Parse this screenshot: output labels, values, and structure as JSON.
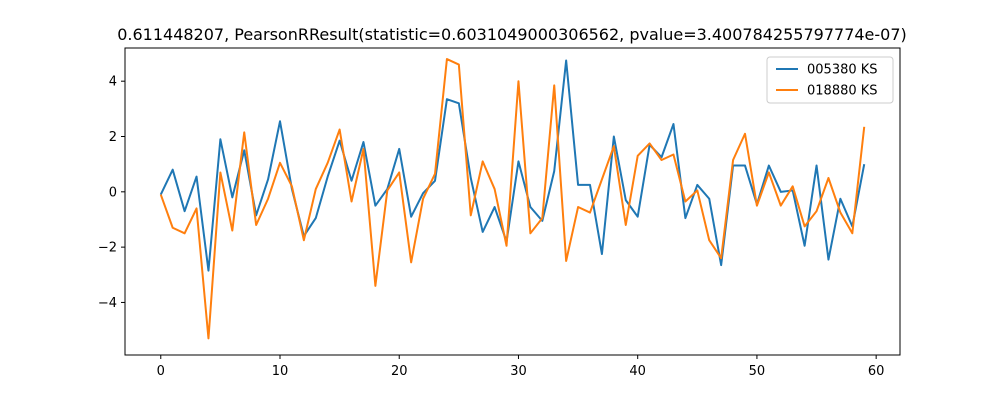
{
  "chart_data": {
    "type": "line",
    "title": "0.611448207, PearsonRResult(statistic=0.6031049000306562, pvalue=3.400784255797774e-07)",
    "xlabel": "",
    "ylabel": "",
    "xlim": [
      -3,
      62
    ],
    "ylim": [
      -5.9,
      5.2
    ],
    "x_ticks": [
      0,
      10,
      20,
      30,
      40,
      50,
      60
    ],
    "y_ticks": [
      -4,
      -2,
      0,
      2,
      4
    ],
    "grid": false,
    "legend_position": "top-right",
    "x": [
      0,
      1,
      2,
      3,
      4,
      5,
      6,
      7,
      8,
      9,
      10,
      11,
      12,
      13,
      14,
      15,
      16,
      17,
      18,
      19,
      20,
      21,
      22,
      23,
      24,
      25,
      26,
      27,
      28,
      29,
      30,
      31,
      32,
      33,
      34,
      35,
      36,
      37,
      38,
      39,
      40,
      41,
      42,
      43,
      44,
      45,
      46,
      47,
      48,
      49,
      50,
      51,
      52,
      53,
      54,
      55,
      56,
      57,
      58,
      59
    ],
    "series": [
      {
        "name": "005380 KS",
        "color": "#1f77b4",
        "values": [
          -0.1,
          0.8,
          -0.7,
          0.55,
          -2.85,
          1.9,
          -0.2,
          1.5,
          -0.85,
          0.45,
          2.55,
          0.1,
          -1.6,
          -0.95,
          0.55,
          1.85,
          0.4,
          1.8,
          -0.5,
          0.1,
          1.55,
          -0.9,
          -0.05,
          0.4,
          3.35,
          3.2,
          0.5,
          -1.45,
          -0.55,
          -1.8,
          1.1,
          -0.55,
          -1.05,
          0.75,
          4.75,
          0.25,
          0.25,
          -2.25,
          2.0,
          -0.3,
          -0.9,
          1.7,
          1.25,
          2.45,
          -0.95,
          0.25,
          -0.25,
          -2.65,
          0.95,
          0.95,
          -0.45,
          0.95,
          0.0,
          0.05,
          -1.95,
          0.95,
          -2.45,
          -0.25,
          -1.25,
          1.0
        ]
      },
      {
        "name": "018880 KS",
        "color": "#ff7f0e",
        "values": [
          -0.1,
          -1.3,
          -1.5,
          -0.6,
          -5.3,
          0.7,
          -1.4,
          2.15,
          -1.2,
          -0.25,
          1.05,
          0.2,
          -1.75,
          0.1,
          1.05,
          2.25,
          -0.35,
          1.55,
          -3.4,
          0.05,
          0.7,
          -2.55,
          -0.25,
          0.65,
          4.8,
          4.6,
          -0.85,
          1.1,
          0.1,
          -1.95,
          4.0,
          -1.5,
          -0.95,
          3.85,
          -2.5,
          -0.55,
          -0.75,
          0.45,
          1.65,
          -1.2,
          1.3,
          1.75,
          1.15,
          1.35,
          -0.35,
          0.05,
          -1.75,
          -2.4,
          1.15,
          2.1,
          -0.5,
          0.7,
          -0.5,
          0.2,
          -1.25,
          -0.7,
          0.5,
          -0.75,
          -1.5,
          2.35
        ]
      }
    ]
  }
}
